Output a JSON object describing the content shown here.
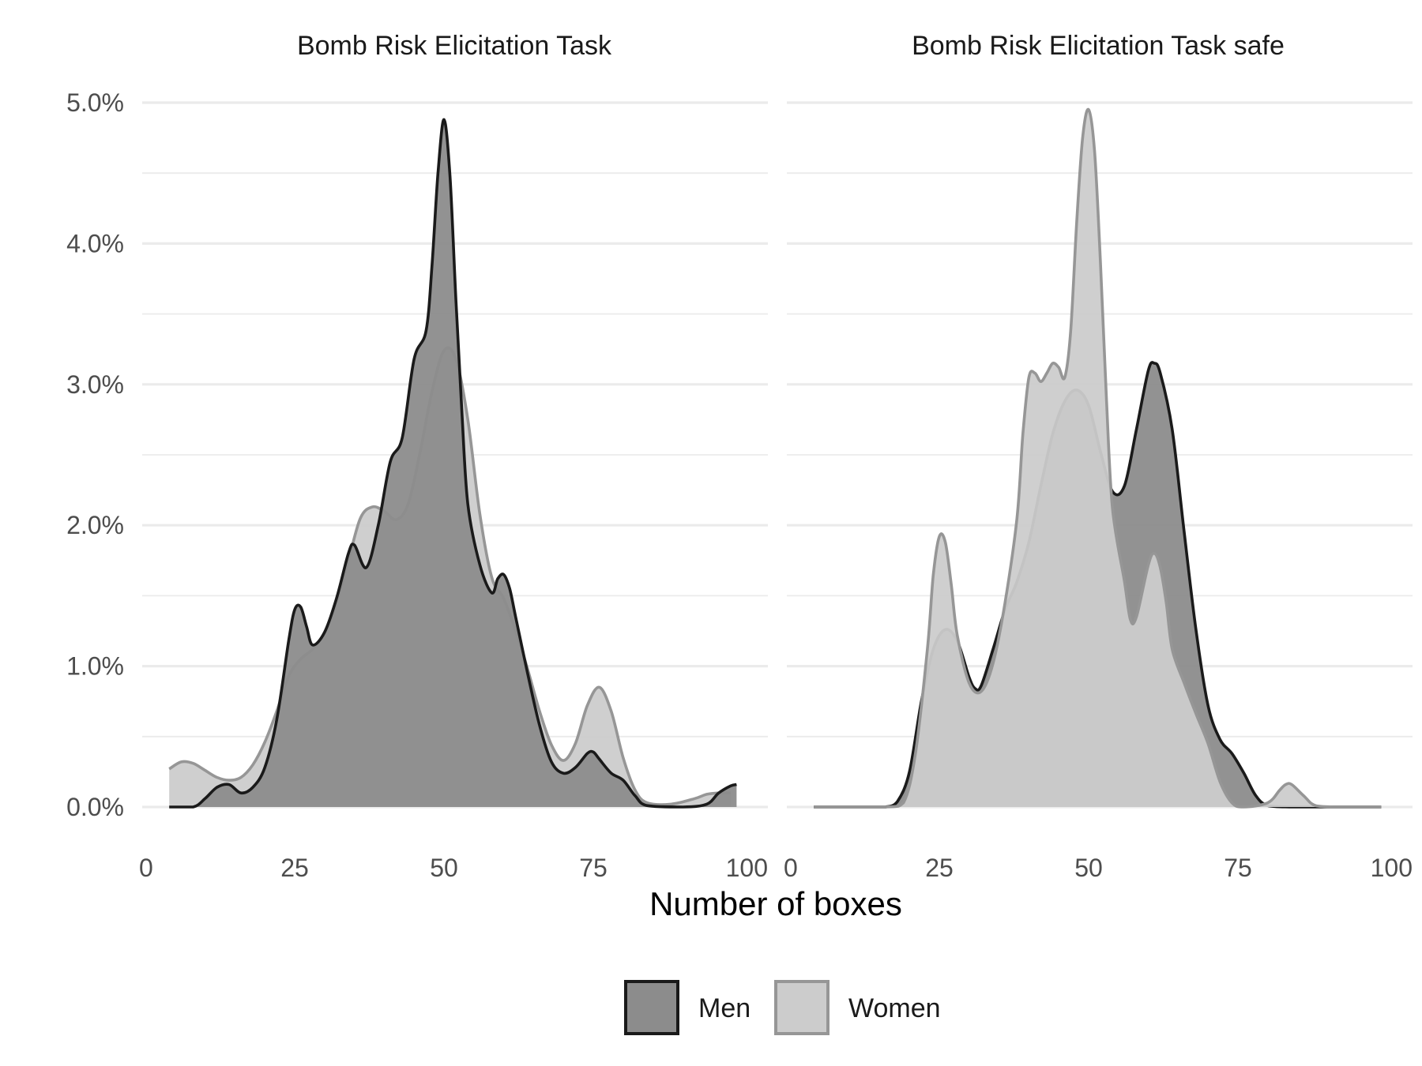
{
  "chart_data": {
    "type": "area",
    "subtype": "density",
    "xlabel": "Number of boxes",
    "ylabel": "",
    "xlim": [
      0,
      100
    ],
    "ylim": [
      0,
      0.05
    ],
    "x_ticks": [
      0,
      25,
      50,
      75,
      100
    ],
    "y_ticks": [
      0,
      0.01,
      0.02,
      0.03,
      0.04,
      0.05
    ],
    "y_tick_labels": [
      "0.0%",
      "1.0%",
      "2.0%",
      "3.0%",
      "4.0%",
      "5.0%"
    ],
    "grid": true,
    "legend_position": "bottom",
    "legend": [
      {
        "name": "Men",
        "fill": "#8c8c8c",
        "stroke": "#1a1a1a"
      },
      {
        "name": "Women",
        "fill": "#cccccc",
        "stroke": "#969696"
      }
    ],
    "colors": {
      "men_fill": "#8c8c8c",
      "men_line": "#1a1a1a",
      "women_fill": "#cccccc",
      "women_line": "#969696",
      "grid": "#ebebeb"
    },
    "panels": [
      {
        "title": "Bomb Risk Elicitation Task",
        "series": [
          {
            "name": "Women",
            "points": [
              [
                4,
                0.0027
              ],
              [
                6,
                0.0032
              ],
              [
                8,
                0.0031
              ],
              [
                10,
                0.0026
              ],
              [
                12,
                0.0021
              ],
              [
                14,
                0.0019
              ],
              [
                16,
                0.0021
              ],
              [
                18,
                0.003
              ],
              [
                20,
                0.0046
              ],
              [
                22,
                0.0068
              ],
              [
                24,
                0.0093
              ],
              [
                26,
                0.0105
              ],
              [
                28,
                0.0112
              ],
              [
                30,
                0.0124
              ],
              [
                32,
                0.0145
              ],
              [
                34,
                0.0175
              ],
              [
                36,
                0.0205
              ],
              [
                38,
                0.0213
              ],
              [
                40,
                0.021
              ],
              [
                42,
                0.0204
              ],
              [
                44,
                0.0215
              ],
              [
                46,
                0.0252
              ],
              [
                48,
                0.0295
              ],
              [
                50,
                0.0324
              ],
              [
                52,
                0.0318
              ],
              [
                54,
                0.0275
              ],
              [
                56,
                0.0208
              ],
              [
                58,
                0.0163
              ],
              [
                60,
                0.0148
              ],
              [
                62,
                0.0125
              ],
              [
                64,
                0.0098
              ],
              [
                66,
                0.0068
              ],
              [
                68,
                0.0044
              ],
              [
                70,
                0.0033
              ],
              [
                72,
                0.0045
              ],
              [
                74,
                0.0072
              ],
              [
                76,
                0.0085
              ],
              [
                78,
                0.0068
              ],
              [
                80,
                0.0035
              ],
              [
                82,
                0.0012
              ],
              [
                84,
                0.0003
              ],
              [
                88,
                0.0002
              ],
              [
                92,
                0.0006
              ],
              [
                94,
                0.0009
              ],
              [
                96,
                0.001
              ],
              [
                98,
                0.001
              ]
            ]
          },
          {
            "name": "Men",
            "points": [
              [
                4,
                0
              ],
              [
                8,
                0
              ],
              [
                10,
                0.0006
              ],
              [
                12,
                0.0014
              ],
              [
                14,
                0.0016
              ],
              [
                16,
                0.001
              ],
              [
                18,
                0.0014
              ],
              [
                20,
                0.0028
              ],
              [
                22,
                0.0062
              ],
              [
                24,
                0.0118
              ],
              [
                25,
                0.014
              ],
              [
                26,
                0.0142
              ],
              [
                27,
                0.0128
              ],
              [
                28,
                0.0115
              ],
              [
                30,
                0.0124
              ],
              [
                32,
                0.0148
              ],
              [
                34,
                0.018
              ],
              [
                35,
                0.0186
              ],
              [
                37,
                0.017
              ],
              [
                39,
                0.02
              ],
              [
                41,
                0.0245
              ],
              [
                43,
                0.0262
              ],
              [
                45,
                0.0318
              ],
              [
                47,
                0.0338
              ],
              [
                48,
                0.0385
              ],
              [
                49,
                0.045
              ],
              [
                50,
                0.0488
              ],
              [
                51,
                0.0448
              ],
              [
                52,
                0.036
              ],
              [
                53,
                0.028
              ],
              [
                54,
                0.0215
              ],
              [
                56,
                0.0172
              ],
              [
                58,
                0.0152
              ],
              [
                59,
                0.0162
              ],
              [
                60,
                0.0165
              ],
              [
                61,
                0.0155
              ],
              [
                62,
                0.0135
              ],
              [
                64,
                0.0095
              ],
              [
                66,
                0.0058
              ],
              [
                68,
                0.0032
              ],
              [
                70,
                0.0024
              ],
              [
                72,
                0.0028
              ],
              [
                74,
                0.0038
              ],
              [
                75,
                0.0039
              ],
              [
                76,
                0.0034
              ],
              [
                78,
                0.0024
              ],
              [
                80,
                0.0019
              ],
              [
                82,
                0.0008
              ],
              [
                84,
                0.0001
              ],
              [
                90,
                0
              ],
              [
                94,
                0.0002
              ],
              [
                96,
                0.001
              ],
              [
                98,
                0.0015
              ],
              [
                99,
                0.0016
              ]
            ]
          }
        ]
      },
      {
        "title": "Bomb Risk Elicitation Task safe",
        "series": [
          {
            "name": "Men",
            "points": [
              [
                4,
                0
              ],
              [
                10,
                0
              ],
              [
                14,
                0
              ],
              [
                16,
                0
              ],
              [
                18,
                0.0004
              ],
              [
                20,
                0.0025
              ],
              [
                22,
                0.0075
              ],
              [
                24,
                0.0112
              ],
              [
                26,
                0.0126
              ],
              [
                28,
                0.0118
              ],
              [
                30,
                0.0092
              ],
              [
                31,
                0.0084
              ],
              [
                32,
                0.0086
              ],
              [
                34,
                0.0112
              ],
              [
                36,
                0.014
              ],
              [
                38,
                0.016
              ],
              [
                40,
                0.0188
              ],
              [
                42,
                0.0228
              ],
              [
                44,
                0.0265
              ],
              [
                46,
                0.0288
              ],
              [
                48,
                0.0296
              ],
              [
                50,
                0.0285
              ],
              [
                52,
                0.0252
              ],
              [
                54,
                0.0224
              ],
              [
                56,
                0.0228
              ],
              [
                58,
                0.0268
              ],
              [
                60,
                0.031
              ],
              [
                61,
                0.0315
              ],
              [
                62,
                0.0308
              ],
              [
                64,
                0.0268
              ],
              [
                66,
                0.0195
              ],
              [
                68,
                0.0125
              ],
              [
                70,
                0.0072
              ],
              [
                72,
                0.0048
              ],
              [
                74,
                0.0038
              ],
              [
                76,
                0.0024
              ],
              [
                78,
                0.0008
              ],
              [
                80,
                0.0001
              ],
              [
                84,
                0
              ],
              [
                90,
                0
              ],
              [
                99,
                0
              ]
            ]
          },
          {
            "name": "Women",
            "points": [
              [
                4,
                0
              ],
              [
                16,
                0
              ],
              [
                19,
                0.0003
              ],
              [
                21,
                0.0038
              ],
              [
                23,
                0.0112
              ],
              [
                24,
                0.0165
              ],
              [
                25,
                0.0192
              ],
              [
                26,
                0.0188
              ],
              [
                27,
                0.0158
              ],
              [
                28,
                0.0122
              ],
              [
                30,
                0.0088
              ],
              [
                32,
                0.0082
              ],
              [
                34,
                0.0102
              ],
              [
                36,
                0.0145
              ],
              [
                38,
                0.0205
              ],
              [
                39,
                0.0265
              ],
              [
                40,
                0.0305
              ],
              [
                41,
                0.0308
              ],
              [
                42,
                0.0302
              ],
              [
                43,
                0.0308
              ],
              [
                44,
                0.0315
              ],
              [
                45,
                0.0312
              ],
              [
                46,
                0.0305
              ],
              [
                47,
                0.0338
              ],
              [
                48,
                0.0415
              ],
              [
                49,
                0.0475
              ],
              [
                50,
                0.0495
              ],
              [
                51,
                0.0465
              ],
              [
                52,
                0.0385
              ],
              [
                53,
                0.0288
              ],
              [
                54,
                0.0212
              ],
              [
                56,
                0.016
              ],
              [
                57,
                0.0133
              ],
              [
                58,
                0.0135
              ],
              [
                60,
                0.0172
              ],
              [
                61,
                0.018
              ],
              [
                62,
                0.017
              ],
              [
                63,
                0.0145
              ],
              [
                64,
                0.0112
              ],
              [
                66,
                0.0088
              ],
              [
                68,
                0.0066
              ],
              [
                70,
                0.0045
              ],
              [
                72,
                0.0018
              ],
              [
                74,
                0.0003
              ],
              [
                76,
                0
              ],
              [
                80,
                0.0003
              ],
              [
                82,
                0.0012
              ],
              [
                83,
                0.0016
              ],
              [
                84,
                0.0016
              ],
              [
                86,
                0.0008
              ],
              [
                88,
                0.0001
              ],
              [
                92,
                0
              ],
              [
                99,
                0
              ]
            ]
          }
        ]
      }
    ]
  }
}
